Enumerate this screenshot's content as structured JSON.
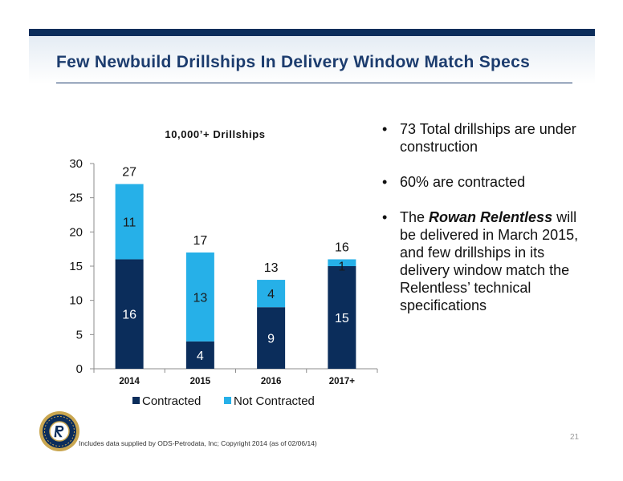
{
  "slide": {
    "title": "Few Newbuild Drillships In Delivery Window Match Specs",
    "page_number": "21",
    "footnote": "Includes data supplied by ODS-Petrodata, Inc; Copyright 2014 (as of 02/06/14)"
  },
  "bullets": [
    {
      "text": "73 Total drillships are under construction"
    },
    {
      "text": "60% are contracted"
    },
    {
      "prefix": "The ",
      "emphasis": "Rowan Relentless",
      "suffix": " will be delivered in March 2015, and few drillships in its delivery window match the Relentless’ technical specifications"
    }
  ],
  "bullet_glyph": "•",
  "chart_data": {
    "type": "bar",
    "stacked": true,
    "title": "10,000’+ Drillships",
    "xlabel": "",
    "ylabel": "",
    "categories": [
      "2014",
      "2015",
      "2016",
      "2017+"
    ],
    "series": [
      {
        "name": "Contracted",
        "values": [
          16,
          4,
          9,
          15
        ],
        "color": "#0b2d5b",
        "label_color": "#ffffff"
      },
      {
        "name": "Not Contracted",
        "values": [
          11,
          13,
          4,
          1
        ],
        "color": "#26b0e8",
        "label_color": "#1a1a1a"
      }
    ],
    "totals": [
      27,
      17,
      13,
      16
    ],
    "ylim": [
      0,
      30
    ],
    "yticks": [
      0,
      5,
      10,
      15,
      20,
      25,
      30
    ],
    "grid": false,
    "legend_position": "bottom"
  }
}
